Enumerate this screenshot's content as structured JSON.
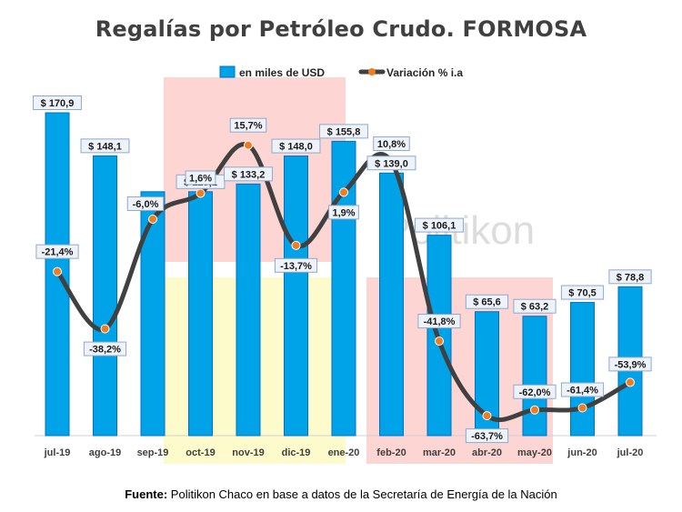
{
  "chart_data": {
    "type": "bar",
    "title": "Regalías por Petróleo Crudo. FORMOSA",
    "categories": [
      "jul-19",
      "ago-19",
      "sep-19",
      "oct-19",
      "nov-19",
      "dic-19",
      "ene-20",
      "feb-20",
      "mar-20",
      "abr-20",
      "may-20",
      "jun-20",
      "jul-20"
    ],
    "series": [
      {
        "name": "en miles de USD",
        "type": "bar",
        "color": "#00a2e8",
        "values": [
          170.9,
          148.1,
          129.1,
          129.1,
          133.2,
          148.0,
          155.8,
          139.0,
          106.1,
          65.6,
          63.2,
          70.5,
          78.8
        ],
        "labels": [
          "$ 170,9",
          "$ 148,1",
          "",
          "$ 129,1",
          "$ 133,2",
          "$ 148,0",
          "$ 155,8",
          "$ 139,0",
          "$ 106,1",
          "$ 65,6",
          "$ 63,2",
          "$ 70,5",
          "$ 78,8"
        ]
      },
      {
        "name": "Variación % i.a",
        "type": "line",
        "color": "#404040",
        "marker_color": "#f07c22",
        "values": [
          -21.4,
          -38.2,
          -6.0,
          1.6,
          15.7,
          -13.7,
          1.9,
          10.8,
          -41.8,
          -63.7,
          -62.0,
          -61.4,
          -53.9
        ],
        "labels": [
          "-21,4%",
          "-38,2%",
          "-6,0%",
          "1,6%",
          "15,7%",
          "-13,7%",
          "1,9%",
          "10,8%",
          "-41,8%",
          "-63,7%",
          "-62,0%",
          "-61,4%",
          "-53,9%"
        ]
      }
    ],
    "legend_position": "top",
    "watermark": "Politikon",
    "colors": {
      "bar": "#00a2e8",
      "bar_edge": "#0070c0",
      "line": "#404040",
      "marker": "#f07c22",
      "shade_red": "#fdd5d3",
      "shade_yellow": "#fdfacb"
    }
  },
  "source": {
    "label": "Fuente:",
    "text": " Politikon Chaco en base a datos de la Secretaría de Energía de la Nación"
  }
}
